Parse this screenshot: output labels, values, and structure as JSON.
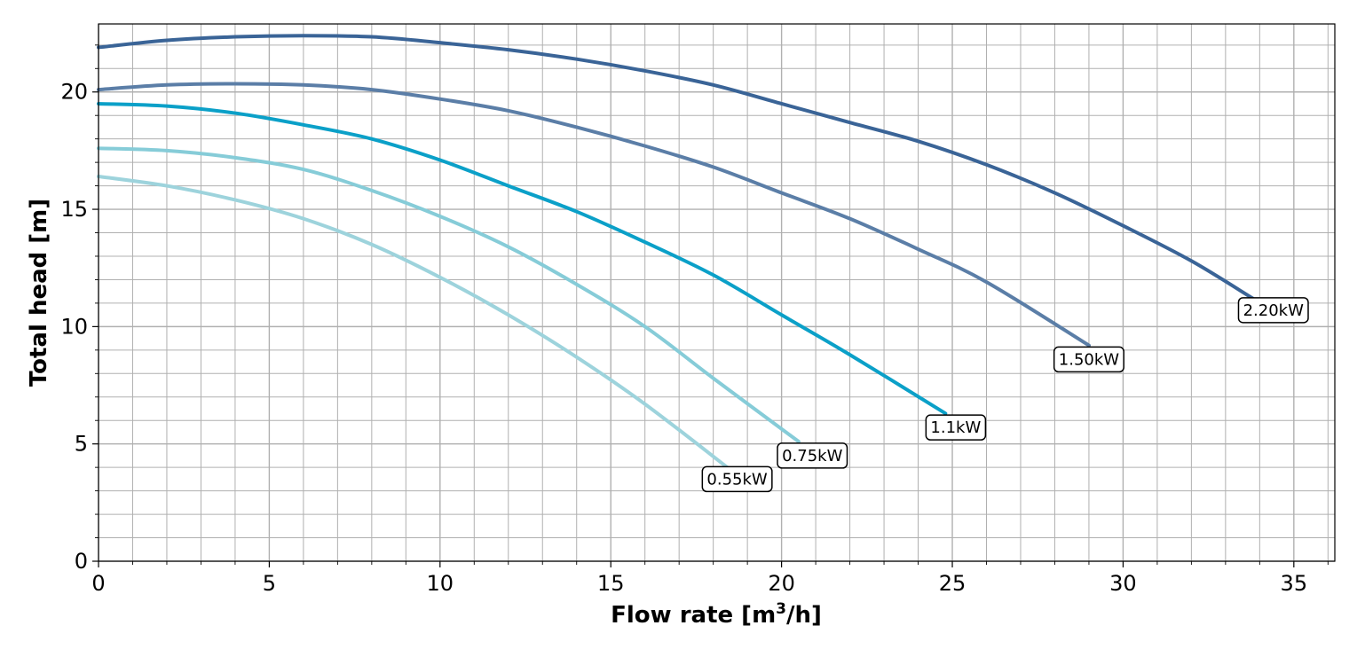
{
  "chart_data": {
    "type": "line",
    "title": "",
    "xlabel": "Flow rate [m³/h]",
    "xlabel_main": "Flow rate [m",
    "xlabel_sup": "3",
    "xlabel_tail": "/h]",
    "ylabel": "Total head [m]",
    "xlim": [
      0,
      36.2
    ],
    "ylim": [
      0,
      22.9
    ],
    "xticks": [
      0,
      5,
      10,
      15,
      20,
      25,
      30,
      35
    ],
    "yticks": [
      0,
      5,
      10,
      15,
      20
    ],
    "xtick_labels": [
      "0",
      "5",
      "10",
      "15",
      "20",
      "25",
      "30",
      "35"
    ],
    "ytick_labels": [
      "0",
      "5",
      "10",
      "15",
      "20"
    ],
    "minor_grid_step_x": 1,
    "minor_grid_step_y": 1,
    "grid": true,
    "grid_color": "#b0b0b0",
    "series": [
      {
        "name": "0.55kW",
        "label": "0.55kW",
        "color": "#9dd3dc",
        "x": [
          0,
          2,
          4,
          6,
          8,
          10,
          12,
          14,
          16,
          18.5
        ],
        "y": [
          16.4,
          16.0,
          15.4,
          14.6,
          13.5,
          12.1,
          10.5,
          8.7,
          6.7,
          3.9
        ],
        "label_at": [
          18.7,
          3.5
        ]
      },
      {
        "name": "0.75kW",
        "label": "0.75kW",
        "color": "#86ccd8",
        "x": [
          0,
          2,
          4,
          6,
          8,
          10,
          12,
          14,
          16,
          18,
          20.5
        ],
        "y": [
          17.6,
          17.5,
          17.2,
          16.7,
          15.8,
          14.7,
          13.4,
          11.8,
          10.0,
          7.8,
          5.1
        ],
        "label_at": [
          20.9,
          4.5
        ]
      },
      {
        "name": "1.1kW",
        "label": "1.1kW",
        "color": "#0ba0c8",
        "x": [
          0,
          2,
          4,
          6,
          8,
          10,
          12,
          14,
          16,
          18,
          20,
          22,
          24.8
        ],
        "y": [
          19.5,
          19.4,
          19.1,
          18.6,
          18.0,
          17.1,
          16.0,
          14.9,
          13.6,
          12.2,
          10.5,
          8.8,
          6.3
        ],
        "label_at": [
          25.1,
          5.7
        ]
      },
      {
        "name": "1.50kW",
        "label": "1.50kW",
        "color": "#5b7ea7",
        "x": [
          0,
          2,
          4,
          6,
          8,
          10,
          12,
          14,
          16,
          18,
          20,
          22,
          24,
          26,
          29
        ],
        "y": [
          20.1,
          20.3,
          20.35,
          20.3,
          20.1,
          19.7,
          19.2,
          18.5,
          17.7,
          16.8,
          15.7,
          14.6,
          13.3,
          11.9,
          9.2
        ],
        "label_at": [
          29.0,
          8.6
        ]
      },
      {
        "name": "2.20kW",
        "label": "2.20kW",
        "color": "#3a6497",
        "x": [
          0,
          2,
          4,
          6,
          8,
          10,
          12,
          14,
          16,
          18,
          20,
          22,
          24,
          26,
          28,
          30,
          32,
          33.8
        ],
        "y": [
          21.9,
          22.2,
          22.35,
          22.4,
          22.35,
          22.1,
          21.8,
          21.4,
          20.9,
          20.3,
          19.5,
          18.7,
          17.9,
          16.9,
          15.7,
          14.3,
          12.8,
          11.2
        ],
        "label_at": [
          34.4,
          10.7
        ]
      }
    ]
  }
}
